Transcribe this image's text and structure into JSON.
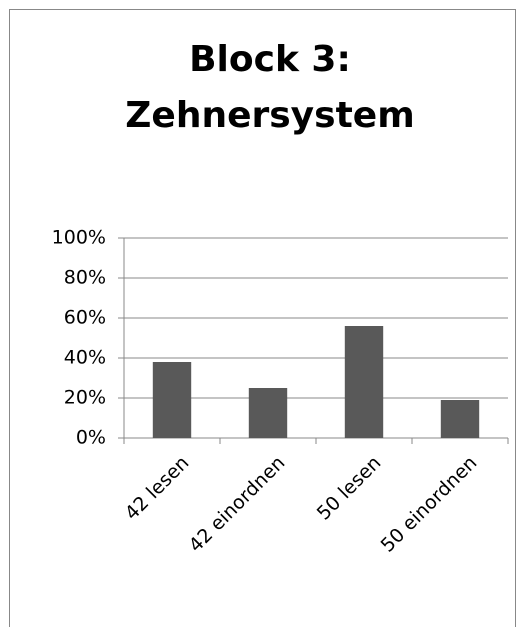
{
  "chart_data": {
    "type": "bar",
    "title": "Block 3: Zehnersystem",
    "categories": [
      "42 lesen",
      "42 einordnen",
      "50 lesen",
      "50 einordnen"
    ],
    "values": [
      38,
      25,
      56,
      19
    ],
    "color": "#595959",
    "ylim": [
      0,
      100
    ],
    "yticks": [
      {
        "value": 0,
        "label": "0%"
      },
      {
        "value": 20,
        "label": "20%"
      },
      {
        "value": 40,
        "label": "40%"
      },
      {
        "value": 60,
        "label": "60%"
      },
      {
        "value": 80,
        "label": "80%"
      },
      {
        "value": 100,
        "label": "100%"
      }
    ],
    "grid": true
  }
}
